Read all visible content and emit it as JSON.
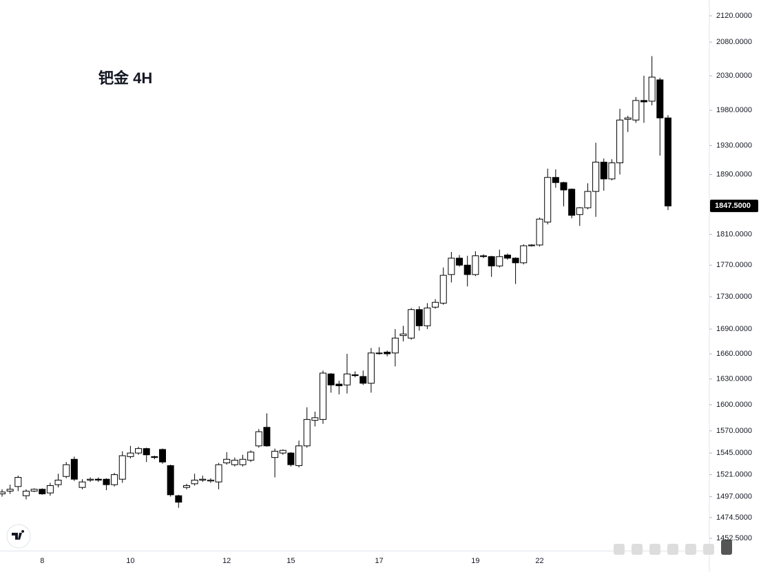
{
  "chart_data": {
    "type": "candlestick",
    "title": "钯金 4H",
    "log_scale": true,
    "up_color": "#ffffff",
    "down_color": "#000000",
    "outline_color": "#000000",
    "categories": [
      null,
      null,
      null,
      null,
      null,
      "8",
      null,
      null,
      null,
      null,
      null,
      null,
      null,
      null,
      null,
      null,
      "10",
      null,
      null,
      null,
      null,
      null,
      null,
      null,
      null,
      null,
      null,
      null,
      "12",
      null,
      null,
      null,
      null,
      null,
      null,
      null,
      "15",
      null,
      null,
      null,
      null,
      null,
      null,
      null,
      null,
      null,
      null,
      "17",
      null,
      null,
      null,
      null,
      null,
      null,
      null,
      null,
      null,
      null,
      null,
      "19",
      null,
      null,
      null,
      null,
      null,
      null,
      null,
      "22",
      null,
      null,
      null,
      null,
      null,
      null,
      null,
      null,
      null,
      null,
      null,
      null,
      null,
      null,
      null,
      null
    ],
    "open": [
      1500,
      1503,
      1508,
      1498,
      1503,
      1505,
      1501,
      1510,
      1519,
      1538,
      1507,
      1515,
      1516,
      1516,
      1510,
      1516,
      1541,
      1545,
      1550,
      1541,
      1549,
      1531,
      1498,
      1507,
      1511,
      1515,
      1514,
      1513,
      1534,
      1532,
      1532,
      1537,
      1553,
      1574,
      1540,
      1545,
      1545,
      1531,
      1553,
      1582,
      1583,
      1636,
      1624,
      1623,
      1635,
      1633,
      1625,
      1661,
      1662,
      1661,
      1682,
      1679,
      1714,
      1694,
      1717,
      1722,
      1758,
      1779,
      1770,
      1758,
      1782,
      1781,
      1769,
      1783,
      1779,
      1773,
      1795,
      1796,
      1826,
      1886,
      1879,
      1870,
      1836,
      1845,
      1867,
      1907,
      1884,
      1906,
      1967,
      1966,
      1994,
      1993,
      2024,
      1969
    ],
    "high": [
      1505,
      1510,
      1520,
      1505,
      1506,
      1506,
      1512,
      1522,
      1535,
      1541,
      1516,
      1518,
      1518,
      1517,
      1523,
      1547,
      1553,
      1552,
      1551,
      1542,
      1550,
      1532,
      1499,
      1511,
      1522,
      1520,
      1517,
      1534,
      1546,
      1540,
      1543,
      1548,
      1572,
      1590,
      1550,
      1549,
      1546,
      1559,
      1597,
      1592,
      1640,
      1637,
      1628,
      1660,
      1639,
      1640,
      1667,
      1668,
      1664,
      1690,
      1694,
      1716,
      1718,
      1722,
      1727,
      1767,
      1787,
      1783,
      1782,
      1788,
      1784,
      1782,
      1790,
      1785,
      1780,
      1797,
      1797,
      1832,
      1898,
      1897,
      1880,
      1871,
      1846,
      1878,
      1934,
      1912,
      1911,
      1982,
      1972,
      1999,
      2030,
      2059,
      2027,
      1973
    ],
    "low": [
      1497,
      1500,
      1503,
      1494,
      1502,
      1499,
      1498,
      1507,
      1517,
      1514,
      1505,
      1513,
      1513,
      1504,
      1508,
      1512,
      1539,
      1543,
      1535,
      1538,
      1533,
      1497,
      1485,
      1505,
      1509,
      1513,
      1512,
      1505,
      1532,
      1530,
      1530,
      1535,
      1551,
      1552,
      1518,
      1543,
      1530,
      1529,
      1551,
      1575,
      1578,
      1614,
      1612,
      1613,
      1632,
      1623,
      1614,
      1659,
      1657,
      1645,
      1675,
      1677,
      1688,
      1690,
      1715,
      1720,
      1748,
      1768,
      1743,
      1756,
      1779,
      1755,
      1767,
      1777,
      1746,
      1771,
      1794,
      1794,
      1823,
      1872,
      1847,
      1831,
      1821,
      1843,
      1833,
      1868,
      1882,
      1890,
      1949,
      1962,
      1962,
      1987,
      1916,
      1842
    ],
    "close": [
      1502,
      1505,
      1518,
      1503,
      1505,
      1500,
      1509,
      1515,
      1532,
      1516,
      1513,
      1516,
      1515,
      1510,
      1521,
      1542,
      1545,
      1550,
      1543,
      1540,
      1535,
      1499,
      1491,
      1509,
      1515,
      1516,
      1515,
      1532,
      1538,
      1537,
      1538,
      1546,
      1569,
      1553,
      1547,
      1548,
      1532,
      1553,
      1583,
      1585,
      1637,
      1623,
      1622,
      1636,
      1634,
      1625,
      1661,
      1661,
      1660,
      1679,
      1684,
      1714,
      1694,
      1716,
      1723,
      1757,
      1779,
      1770,
      1758,
      1782,
      1781,
      1769,
      1781,
      1779,
      1773,
      1795,
      1796,
      1830,
      1886,
      1879,
      1869,
      1835,
      1845,
      1867,
      1907,
      1884,
      1906,
      1966,
      1969,
      1994,
      1992,
      2028,
      1969,
      1847.5
    ],
    "ylim": [
      1439.6,
      2144.4
    ],
    "yticks": [
      {
        "value": 2120,
        "label": "2120.0000"
      },
      {
        "value": 2080,
        "label": "2080.0000"
      },
      {
        "value": 2030,
        "label": "2030.0000"
      },
      {
        "value": 1980,
        "label": "1980.0000"
      },
      {
        "value": 1930,
        "label": "1930.0000"
      },
      {
        "value": 1890,
        "label": "1890.0000"
      },
      {
        "value": 1810,
        "label": "1810.0000"
      },
      {
        "value": 1770,
        "label": "1770.0000"
      },
      {
        "value": 1730,
        "label": "1730.0000"
      },
      {
        "value": 1690,
        "label": "1690.0000"
      },
      {
        "value": 1660,
        "label": "1660.0000"
      },
      {
        "value": 1630,
        "label": "1630.0000"
      },
      {
        "value": 1600,
        "label": "1600.0000"
      },
      {
        "value": 1570,
        "label": "1570.0000"
      },
      {
        "value": 1545,
        "label": "1545.0000"
      },
      {
        "value": 1521,
        "label": "1521.0000"
      },
      {
        "value": 1497,
        "label": "1497.0000"
      },
      {
        "value": 1474.5,
        "label": "1474.5000"
      },
      {
        "value": 1452.5,
        "label": "1452.5000"
      }
    ],
    "last_price": {
      "value": 1847.5,
      "label": "1847.5000"
    }
  }
}
